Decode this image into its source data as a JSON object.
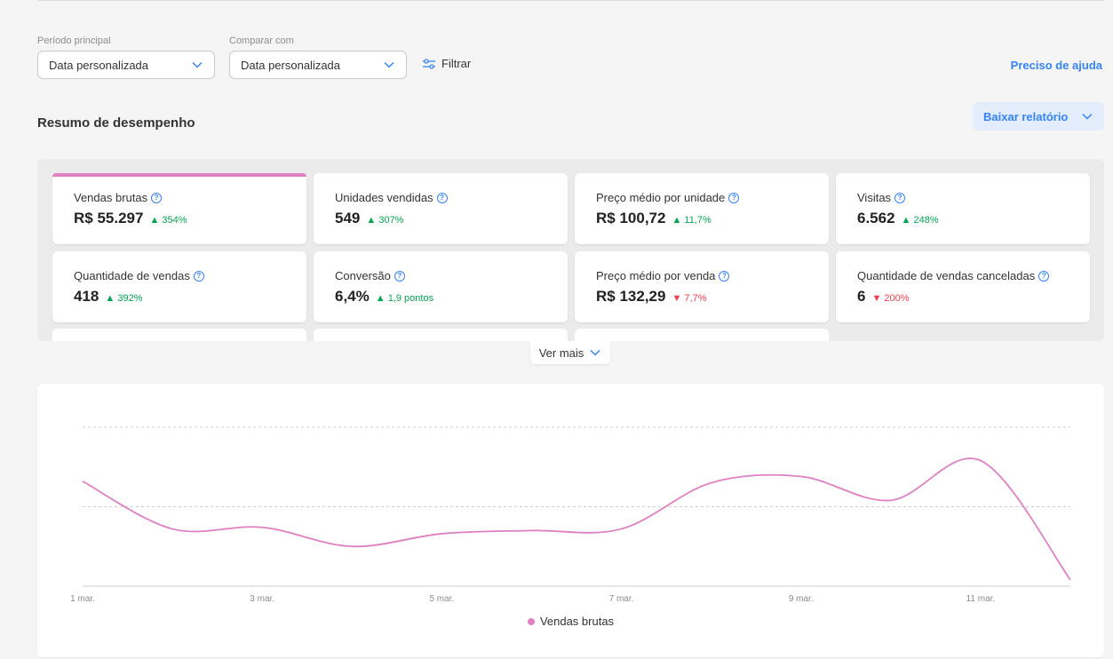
{
  "filters": {
    "main_period_label": "Período principal",
    "main_period_value": "Data personalizada",
    "compare_label": "Comparar com",
    "compare_value": "Data personalizada",
    "filter_label": "Filtrar"
  },
  "help_link": "Preciso de ajuda",
  "summary": {
    "title": "Resumo de desempenho",
    "download_label": "Baixar relatório"
  },
  "cards": [
    {
      "label": "Vendas brutas",
      "value": "R$ 55.297",
      "delta": "354%",
      "trend": "up"
    },
    {
      "label": "Unidades vendidas",
      "value": "549",
      "delta": "307%",
      "trend": "up"
    },
    {
      "label": "Preço médio por unidade",
      "value": "R$ 100,72",
      "delta": "11,7%",
      "trend": "up"
    },
    {
      "label": "Visitas",
      "value": "6.562",
      "delta": "248%",
      "trend": "up"
    },
    {
      "label": "Quantidade de vendas",
      "value": "418",
      "delta": "392%",
      "trend": "up"
    },
    {
      "label": "Conversão",
      "value": "6,4%",
      "delta": "1,9 pontos",
      "trend": "up"
    },
    {
      "label": "Preço médio por venda",
      "value": "R$ 132,29",
      "delta": "7,7%",
      "trend": "down"
    },
    {
      "label": "Quantidade de vendas canceladas",
      "value": "6",
      "delta": "200%",
      "trend": "down"
    }
  ],
  "more_label": "Ver mais",
  "colors": {
    "accent": "#3483fa",
    "series": "#e07fc2",
    "up": "#00a650",
    "down": "#f23d4f"
  },
  "chart_data": {
    "type": "line",
    "x": [
      "1 mar.",
      "2 mar.",
      "3 mar.",
      "4 mar.",
      "5 mar.",
      "6 mar.",
      "7 mar.",
      "8 mar.",
      "9 mar.",
      "10 mar.",
      "11 mar.",
      "12 mar."
    ],
    "tick_labels": [
      "1 mar.",
      "3 mar.",
      "5 mar.",
      "7 mar.",
      "9 mar.",
      "11 mar."
    ],
    "series": [
      {
        "name": "Vendas brutas",
        "values": [
          0.66,
          0.36,
          0.37,
          0.25,
          0.33,
          0.35,
          0.36,
          0.65,
          0.69,
          0.54,
          0.79,
          0.04
        ]
      }
    ],
    "ylim": [
      0,
      1
    ],
    "gridlines": [
      0.5,
      1
    ],
    "legend_position": "bottom-center",
    "grid": true
  }
}
